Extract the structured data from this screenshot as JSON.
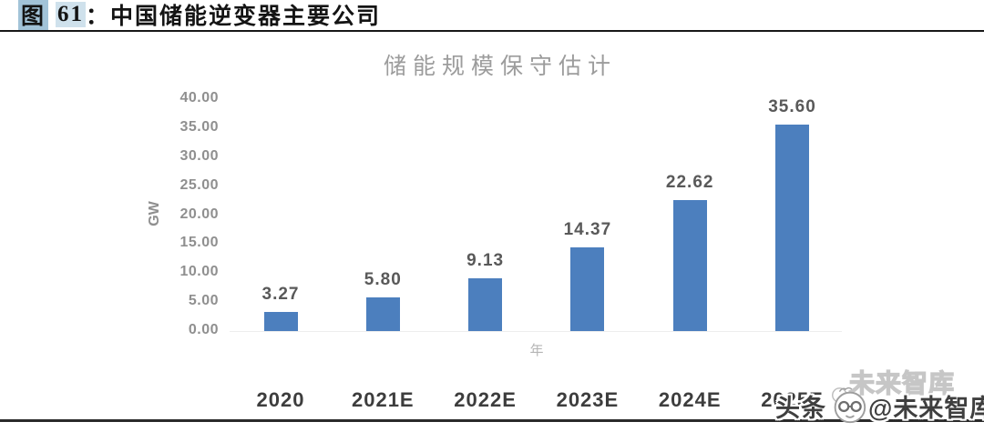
{
  "header": {
    "figure_word": "图",
    "figure_number": "61",
    "colon": "：",
    "figure_title": "中国储能逆变器主要公司"
  },
  "chart_data": {
    "type": "bar",
    "title": "储能规模保守估计",
    "categories": [
      "2020",
      "2021E",
      "2022E",
      "2023E",
      "2024E",
      "2025E"
    ],
    "values": [
      3.27,
      5.8,
      9.13,
      14.37,
      22.62,
      35.6
    ],
    "value_labels": [
      "3.27",
      "5.80",
      "9.13",
      "14.37",
      "22.62",
      "35.60"
    ],
    "ylabel": "GW",
    "xlabel": "年",
    "ylim": [
      0,
      40
    ],
    "ytick_step": 5,
    "ytick_labels": [
      "40.00",
      "35.00",
      "30.00",
      "25.00",
      "20.00",
      "15.00",
      "10.00",
      "5.00",
      "0.00"
    ],
    "grid": false,
    "legend": "none",
    "bar_color": "#4c7fbe"
  },
  "watermark": {
    "ghost_text": "未来智库",
    "main_text_left": "头条",
    "main_text_right": "@未来智库",
    "avatar_icon": "face-with-glasses-icon"
  },
  "colors": {
    "bar": "#4c7fbe",
    "chart_title": "#9c9c9c",
    "axis_text": "#8f8f8f",
    "xtick_text": "#3d3d3d",
    "value_label": "#595959",
    "highlight_strong": "#a2c3d8",
    "highlight_light": "#cfe1ec"
  }
}
